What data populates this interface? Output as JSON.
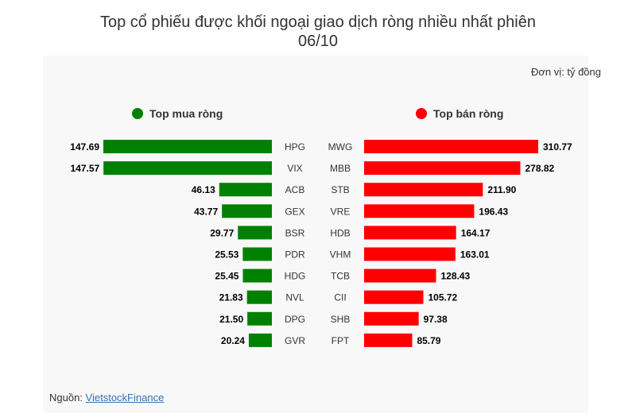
{
  "title_line1": "Top cổ phiếu được khối ngoại giao dịch ròng nhiều nhất phiên",
  "title_line2": "06/10",
  "unit_label": "Đơn vị: tỷ đồng",
  "source_prefix": "Nguồn: ",
  "source_link": "VietstockFinance",
  "colors": {
    "buy": "#008000",
    "sell": "#ff0000",
    "panel": "#f8f8f8"
  },
  "chart_data": [
    {
      "type": "bar",
      "orientation": "horizontal",
      "legend": "Top mua ròng",
      "color": "#008000",
      "categories": [
        "HPG",
        "VIX",
        "ACB",
        "GEX",
        "BSR",
        "PDR",
        "HDG",
        "NVL",
        "DPG",
        "GVR"
      ],
      "values": [
        147.69,
        147.57,
        46.13,
        43.77,
        29.77,
        25.53,
        25.45,
        21.83,
        21.5,
        20.24
      ],
      "labels": [
        "147.69",
        "147.57",
        "46.13",
        "43.77",
        "29.77",
        "25.53",
        "25.45",
        "21.83",
        "21.50",
        "20.24"
      ]
    },
    {
      "type": "bar",
      "orientation": "horizontal",
      "legend": "Top bán ròng",
      "color": "#ff0000",
      "categories": [
        "MWG",
        "MBB",
        "STB",
        "VRE",
        "HDB",
        "VHM",
        "TCB",
        "CII",
        "SHB",
        "FPT"
      ],
      "values": [
        310.77,
        278.82,
        211.9,
        196.43,
        164.17,
        163.01,
        128.43,
        105.72,
        97.38,
        85.79
      ],
      "labels": [
        "310.77",
        "278.82",
        "211.90",
        "196.43",
        "164.17",
        "163.01",
        "128.43",
        "105.72",
        "97.38",
        "85.79"
      ]
    }
  ]
}
